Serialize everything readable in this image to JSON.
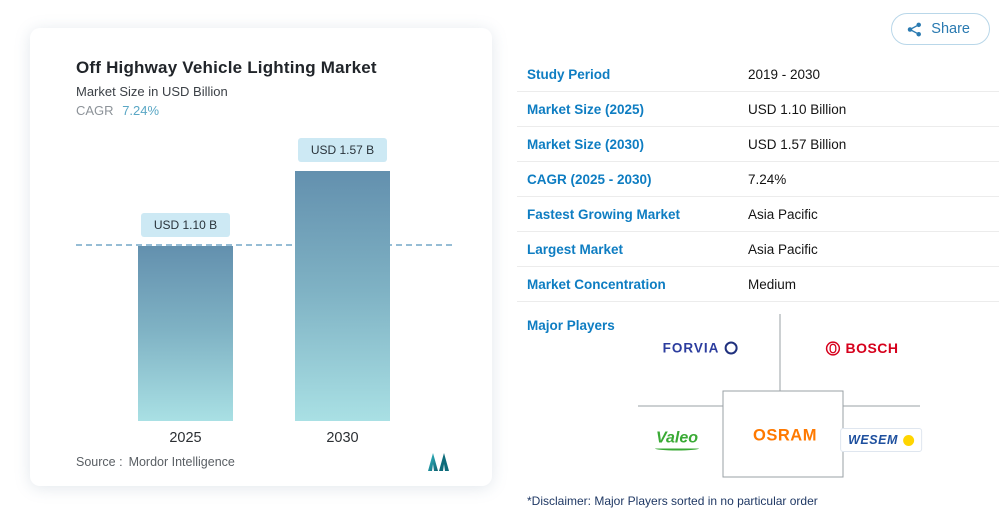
{
  "share": {
    "label": "Share"
  },
  "card": {
    "cagr_label": "CAGR",
    "cagr_value": "7.24%",
    "source_label": "Source :",
    "source_value": "Mordor Intelligence"
  },
  "chart_data": {
    "type": "bar",
    "title": "Off Highway Vehicle Lighting Market",
    "subtitle": "Market Size in USD Billion",
    "categories": [
      "2025",
      "2030"
    ],
    "values": [
      1.1,
      1.57
    ],
    "bar_labels": [
      "USD 1.10 B",
      "USD 1.57 B"
    ],
    "ylim": [
      0,
      1.8
    ],
    "reference_line": 1.1,
    "grid": false,
    "legend": "none",
    "colors": {
      "bar_gradient_top": "#6390ae",
      "bar_gradient_bottom": "#a9e0e4",
      "value_pill_bg": "#cde9f4",
      "dashed_reference_line": "#96bdd5"
    }
  },
  "facts": {
    "rows": [
      {
        "label": "Study Period",
        "value": "2019 - 2030"
      },
      {
        "label": "Market Size (2025)",
        "value": "USD 1.10 Billion"
      },
      {
        "label": "Market Size (2030)",
        "value": "USD 1.57 Billion"
      },
      {
        "label": "CAGR (2025 - 2030)",
        "value": "7.24%"
      },
      {
        "label": "Fastest Growing Market",
        "value": "Asia Pacific"
      },
      {
        "label": "Largest Market",
        "value": "Asia Pacific"
      },
      {
        "label": "Market Concentration",
        "value": "Medium"
      }
    ]
  },
  "major_players": {
    "label": "Major Players",
    "players": [
      "FORVIA",
      "BOSCH",
      "Valeo",
      "OSRAM",
      "WESEM"
    ],
    "disclaimer": "*Disclaimer: Major Players sorted in no particular order"
  },
  "theme": {
    "accent_blue": "#0e7dc2",
    "cagr_teal": "#5aa7c5",
    "share_blue": "#2a7ab1"
  }
}
